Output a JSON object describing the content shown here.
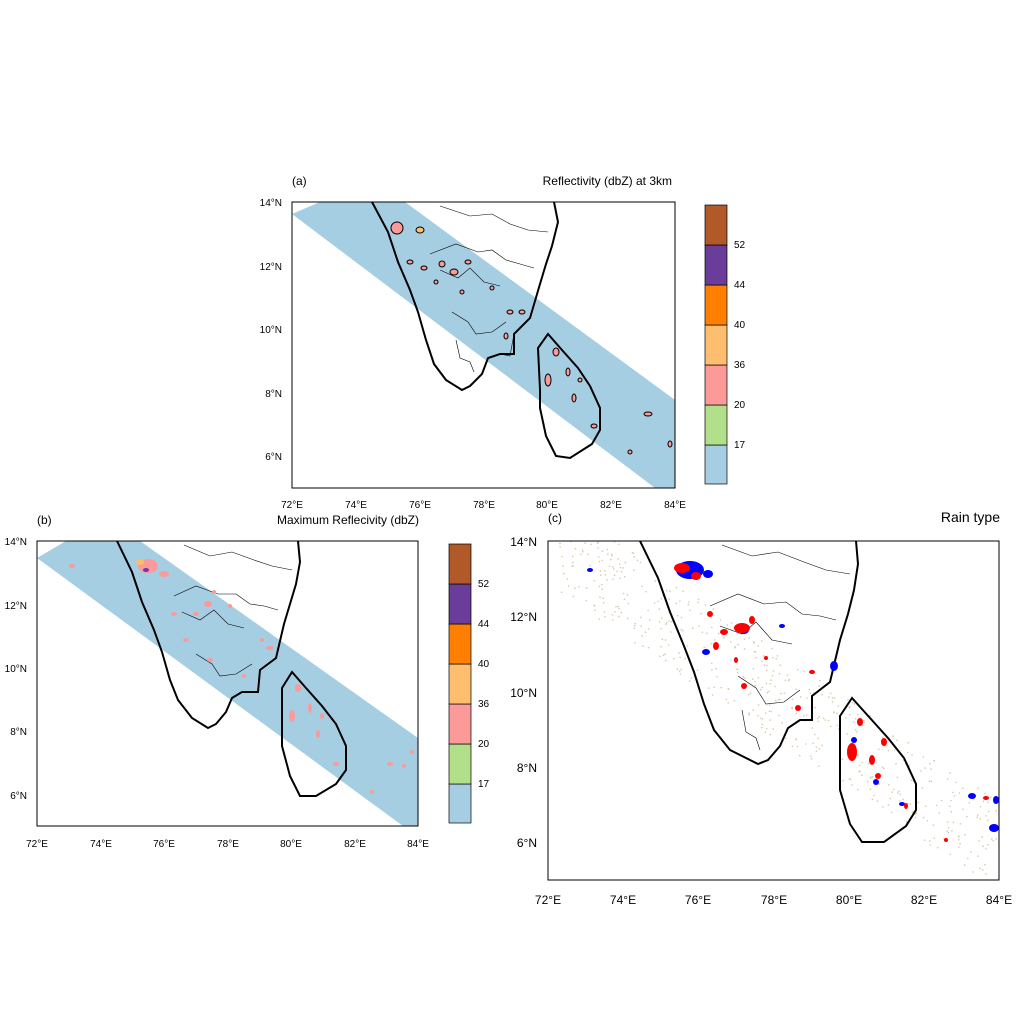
{
  "colors": {
    "swath": "#a6cee3",
    "bin_17": "#b2df8a",
    "bin_20": "#fb9a99",
    "bin_36": "#fdbf6f",
    "bin_40": "#ff7f00",
    "bin_44": "#6a3d9a",
    "bin_52": "#b15928",
    "below_17": "#a6cee3",
    "rain_stratiform": "#ff0000",
    "rain_convective": "#0000ff",
    "rain_other": "#d9c7a7"
  },
  "colorbar": {
    "labels": [
      "17",
      "20",
      "36",
      "40",
      "44",
      "52"
    ],
    "bin_colors": [
      "#a6cee3",
      "#b2df8a",
      "#fb9a99",
      "#fdbf6f",
      "#ff7f00",
      "#6a3d9a",
      "#b15928"
    ]
  },
  "map": {
    "lon_range": [
      72,
      84
    ],
    "lat_range": [
      5,
      14
    ],
    "lon_ticks": [
      "72°E",
      "74°E",
      "76°E",
      "78°E",
      "80°E",
      "82°E",
      "84°E"
    ],
    "lat_ticks_a": [
      "14°N",
      "12°N",
      "10°N",
      "8°N",
      "6°N"
    ],
    "lat_ticks_c": [
      "14°N",
      "12°N",
      "10°N",
      "8°N",
      "6°N"
    ]
  },
  "panels": {
    "a": {
      "label": "(a)",
      "title": "Reflectivity (dbZ) at 3km"
    },
    "b": {
      "label": "(b)",
      "title": "Maximum Reflecivity (dbZ)"
    },
    "c": {
      "label": "(c)",
      "title": "Rain type"
    }
  }
}
